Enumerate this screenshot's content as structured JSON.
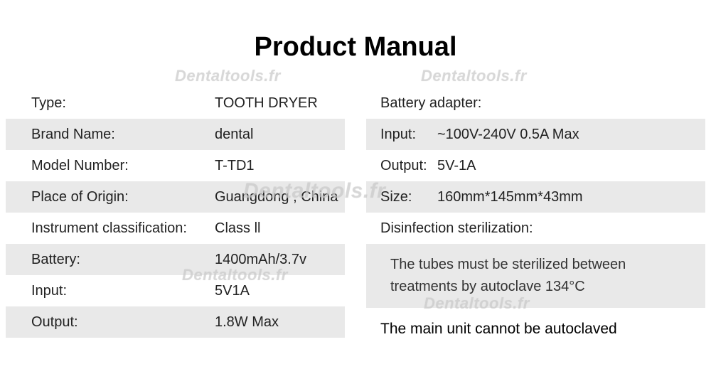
{
  "title": "Product Manual",
  "watermark_text": "Dentaltools.fr",
  "left_rows": [
    {
      "label": "Type:",
      "value": "TOOTH DRYER",
      "shaded": false
    },
    {
      "label": "Brand Name:",
      "value": "dental",
      "shaded": true
    },
    {
      "label": "Model Number:",
      "value": "T-TD1",
      "shaded": false
    },
    {
      "label": "Place of Origin:",
      "value": "Guangdong , China",
      "shaded": true
    },
    {
      "label": "Instrument classification:",
      "value": "Class ll",
      "shaded": false
    },
    {
      "label": "Battery:",
      "value": "1400mAh/3.7v",
      "shaded": true
    },
    {
      "label": "Input:",
      "value": "5V1A",
      "shaded": false
    },
    {
      "label": "Output:",
      "value": "1.8W Max",
      "shaded": true
    }
  ],
  "right_section": {
    "header": "Battery adapter:",
    "input_label": "Input:",
    "input_value": "~100V-240V   0.5A Max",
    "output_label": "Output:",
    "output_value": "5V-1A",
    "size_label": "Size:",
    "size_value": "160mm*145mm*43mm",
    "disinfection_header": "Disinfection sterilization:",
    "note1": "The tubes must be sterilized between treatments by autoclave 134°C",
    "note2": "The main unit cannot be autoclaved"
  },
  "colors": {
    "shaded": "#e9e9e9",
    "text": "#222222",
    "background": "#ffffff"
  }
}
